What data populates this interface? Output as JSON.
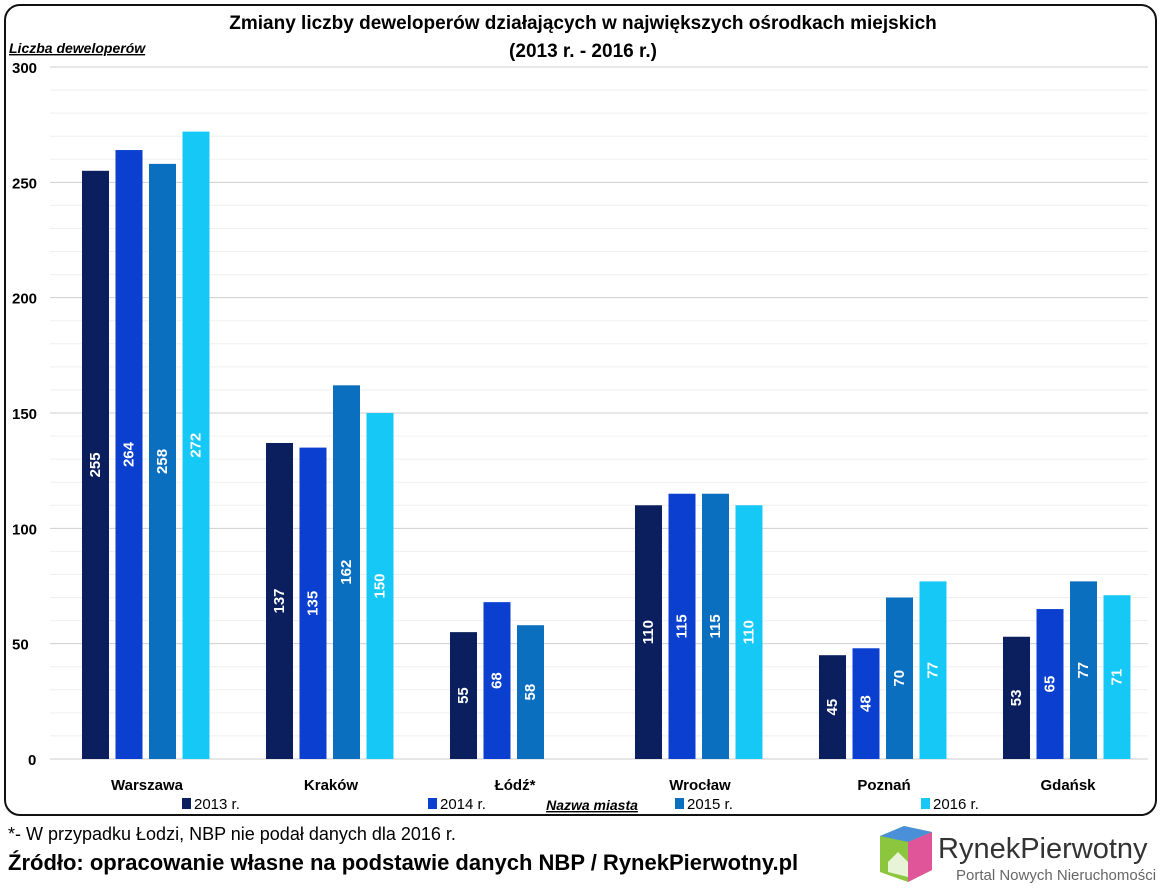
{
  "chart_data": {
    "type": "bar",
    "title": "Zmiany liczby deweloperów działających w największych ośrodkach miejskich",
    "subtitle": "(2013 r. - 2016 r.)",
    "ylabel": "Liczba deweloperów",
    "xlabel": "Nazwa miasta",
    "ylim": [
      0,
      300
    ],
    "yticks": [
      0,
      50,
      100,
      150,
      200,
      250,
      300
    ],
    "grid": true,
    "legend_placement": "bottom",
    "categories": [
      "Warszawa",
      "Kraków",
      "Łódź*",
      "Wrocław",
      "Poznań",
      "Gdańsk"
    ],
    "series": [
      {
        "name": "2013 r.",
        "color": "#0b1f5e",
        "values": [
          255,
          137,
          55,
          110,
          45,
          53
        ]
      },
      {
        "name": "2014 r.",
        "color": "#0a3fd0",
        "values": [
          264,
          135,
          68,
          115,
          48,
          65
        ]
      },
      {
        "name": "2015 r.",
        "color": "#0a6fbf",
        "values": [
          258,
          162,
          58,
          115,
          70,
          77
        ]
      },
      {
        "name": "2016 r.",
        "color": "#16c8f5",
        "values": [
          272,
          150,
          null,
          110,
          77,
          71
        ]
      }
    ]
  },
  "footnote": "*- W przypadku Łodzi, NBP nie podał danych dla 2016 r.",
  "source": "Źródło: opracowanie własne na podstawie danych NBP / RynekPierwotny.pl",
  "logo": {
    "name": "RynekPierwotny",
    "tagline": "Portal Nowych Nieruchomości"
  }
}
